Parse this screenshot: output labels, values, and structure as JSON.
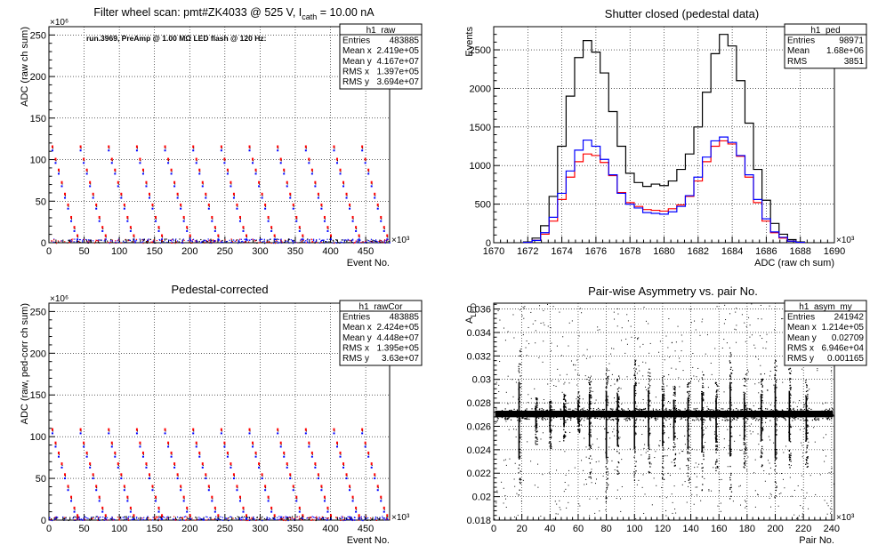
{
  "colors": {
    "black": "#000000",
    "red": "#ff0000",
    "blue": "#0000ff",
    "grid": "#000000"
  },
  "chart_data": [
    {
      "id": "raw",
      "type": "scatter",
      "title_main": "Filter wheel scan: pmt#ZK4033 @   525 V, I",
      "title_sub": "cath",
      "title_tail": " = 10.00 nA",
      "annotation": "run.3969, PreAmp @ 1.00 MΩ LED flash @  120 Hz:",
      "xlabel": "Event No.",
      "ylabel": "ADC (raw ch sum)",
      "x_exponent": "×10³",
      "y_exponent": "×10⁶",
      "xlim": [
        0,
        484
      ],
      "ylim": [
        0,
        260
      ],
      "xticks": [
        0,
        50,
        100,
        150,
        200,
        250,
        300,
        350,
        400,
        450
      ],
      "yticks": [
        0,
        50,
        100,
        150,
        200,
        250
      ],
      "grid": true,
      "stats": {
        "title": "h1_raw",
        "rows": [
          [
            "Entries",
            "483885"
          ],
          [
            "Mean x",
            "2.419e+05"
          ],
          [
            "Mean y",
            "4.167e+07"
          ],
          [
            "RMS x",
            "1.397e+05"
          ],
          [
            "RMS y",
            "3.694e+07"
          ]
        ]
      },
      "pattern": {
        "period": 40,
        "levels": [
          115,
          100,
          87,
          72,
          58,
          45,
          30,
          18,
          8
        ]
      }
    },
    {
      "id": "ped",
      "type": "line",
      "title": "Shutter closed (pedestal data)",
      "xlabel": "ADC (raw ch sum)",
      "ylabel": "Events",
      "x_exponent": "×10³",
      "xlim": [
        1670,
        1690
      ],
      "ylim": [
        0,
        2800
      ],
      "xticks": [
        1670,
        1672,
        1674,
        1676,
        1678,
        1680,
        1682,
        1684,
        1686,
        1688,
        1690
      ],
      "yticks": [
        0,
        500,
        1000,
        1500,
        2000,
        2500
      ],
      "grid": true,
      "stats": {
        "title": "h1_ped",
        "rows": [
          [
            "Entries",
            "98971"
          ],
          [
            "Mean",
            "1.68e+06"
          ],
          [
            "RMS",
            "3851"
          ]
        ]
      },
      "series": [
        {
          "color": "#000000",
          "x": [
            1672.0,
            1672.5,
            1673.0,
            1673.5,
            1674.0,
            1674.5,
            1675.0,
            1675.5,
            1676.0,
            1676.5,
            1677.0,
            1677.5,
            1678.0,
            1678.5,
            1679.0,
            1679.5,
            1680.0,
            1680.5,
            1681.0,
            1681.5,
            1682.0,
            1682.5,
            1683.0,
            1683.5,
            1684.0,
            1684.5,
            1685.0,
            1685.5,
            1686.0,
            1686.5,
            1687.0,
            1687.5,
            1688.0
          ],
          "y": [
            10,
            60,
            220,
            600,
            1250,
            1900,
            2400,
            2620,
            2470,
            2200,
            1700,
            1250,
            900,
            780,
            730,
            760,
            740,
            800,
            950,
            1150,
            1500,
            1950,
            2450,
            2700,
            2550,
            2100,
            1550,
            950,
            550,
            250,
            110,
            40,
            10
          ]
        },
        {
          "color": "#ff0000",
          "x": [
            1672.0,
            1672.5,
            1673.0,
            1673.5,
            1674.0,
            1674.5,
            1675.0,
            1675.5,
            1676.0,
            1676.5,
            1677.0,
            1677.5,
            1678.0,
            1678.5,
            1679.0,
            1679.5,
            1680.0,
            1680.5,
            1681.0,
            1681.5,
            1682.0,
            1682.5,
            1683.0,
            1683.5,
            1684.0,
            1684.5,
            1685.0,
            1685.5,
            1686.0,
            1686.5,
            1687.0,
            1687.5,
            1688.0
          ],
          "y": [
            5,
            30,
            110,
            280,
            560,
            850,
            1050,
            1150,
            1130,
            1040,
            870,
            650,
            520,
            470,
            430,
            420,
            410,
            440,
            490,
            600,
            800,
            1050,
            1250,
            1320,
            1280,
            1120,
            850,
            520,
            280,
            130,
            60,
            20,
            5
          ]
        },
        {
          "color": "#0000ff",
          "x": [
            1672.0,
            1672.5,
            1673.0,
            1673.5,
            1674.0,
            1674.5,
            1675.0,
            1675.5,
            1676.0,
            1676.5,
            1677.0,
            1677.5,
            1678.0,
            1678.5,
            1679.0,
            1679.5,
            1680.0,
            1680.5,
            1681.0,
            1681.5,
            1682.0,
            1682.5,
            1683.0,
            1683.5,
            1684.0,
            1684.5,
            1685.0,
            1685.5,
            1686.0,
            1686.5,
            1687.0,
            1687.5,
            1688.0
          ],
          "y": [
            5,
            30,
            130,
            330,
            640,
            930,
            1200,
            1330,
            1250,
            1080,
            880,
            640,
            500,
            450,
            390,
            380,
            370,
            400,
            470,
            610,
            850,
            1110,
            1320,
            1370,
            1300,
            1130,
            880,
            560,
            310,
            140,
            70,
            20,
            5
          ]
        }
      ]
    },
    {
      "id": "rawCor",
      "type": "scatter",
      "title": "Pedestal-corrected",
      "xlabel": "Event No.",
      "ylabel": "ADC (raw, ped-corr ch sum)",
      "x_exponent": "×10³",
      "y_exponent": "×10⁶",
      "xlim": [
        0,
        484
      ],
      "ylim": [
        0,
        260
      ],
      "xticks": [
        0,
        50,
        100,
        150,
        200,
        250,
        300,
        350,
        400,
        450
      ],
      "yticks": [
        0,
        50,
        100,
        150,
        200,
        250
      ],
      "grid": true,
      "stats": {
        "title": "h1_rawCor",
        "rows": [
          [
            "Entries",
            "483885"
          ],
          [
            "Mean x",
            "2.424e+05"
          ],
          [
            "Mean y",
            "4.448e+07"
          ],
          [
            "RMS x",
            "1.395e+05"
          ],
          [
            "RMS y",
            "3.63e+07"
          ]
        ]
      },
      "pattern": {
        "period": 40,
        "levels": [
          108,
          92,
          80,
          67,
          54,
          40,
          27,
          14,
          5
        ]
      }
    },
    {
      "id": "asym",
      "type": "scatter",
      "title": "Pair-wise Asymmetry vs. pair No.",
      "xlabel": "Pair No.",
      "ylabel": "A",
      "ylabel_sub": "LED",
      "x_exponent": "×10³",
      "xlim": [
        0,
        242
      ],
      "ylim": [
        0.018,
        0.0365
      ],
      "xticks": [
        0,
        20,
        40,
        60,
        80,
        100,
        120,
        140,
        160,
        180,
        200,
        220,
        240
      ],
      "yticks": [
        0.018,
        0.02,
        0.022,
        0.024,
        0.026,
        0.028,
        0.03,
        0.032,
        0.034,
        0.036
      ],
      "grid": true,
      "stats": {
        "title": "h1_asym_my",
        "rows": [
          [
            "Entries",
            "241942"
          ],
          [
            "Mean x",
            "1.214e+05"
          ],
          [
            "Mean y",
            "0.02709"
          ],
          [
            "RMS x",
            "6.946e+04"
          ],
          [
            "RMS y",
            "0.001165"
          ]
        ]
      },
      "band": {
        "center": 0.02705,
        "halfwidth": 0.0004
      },
      "spikes": [
        {
          "x": 18,
          "top": 0.0325,
          "bottom": 0.0195
        },
        {
          "x": 30,
          "top": 0.0285,
          "bottom": 0.0245
        },
        {
          "x": 40,
          "top": 0.0282,
          "bottom": 0.024
        },
        {
          "x": 50,
          "top": 0.0288,
          "bottom": 0.0248
        },
        {
          "x": 60,
          "top": 0.029,
          "bottom": 0.0255
        },
        {
          "x": 68,
          "top": 0.0305,
          "bottom": 0.0215
        },
        {
          "x": 80,
          "top": 0.031,
          "bottom": 0.0195
        },
        {
          "x": 88,
          "top": 0.0305,
          "bottom": 0.0215
        },
        {
          "x": 100,
          "top": 0.032,
          "bottom": 0.021
        },
        {
          "x": 110,
          "top": 0.031,
          "bottom": 0.0215
        },
        {
          "x": 120,
          "top": 0.0305,
          "bottom": 0.0215
        },
        {
          "x": 128,
          "top": 0.0295,
          "bottom": 0.0225
        },
        {
          "x": 138,
          "top": 0.0298,
          "bottom": 0.021
        },
        {
          "x": 148,
          "top": 0.0305,
          "bottom": 0.0205
        },
        {
          "x": 158,
          "top": 0.0298,
          "bottom": 0.0222
        },
        {
          "x": 168,
          "top": 0.0325,
          "bottom": 0.0198
        },
        {
          "x": 178,
          "top": 0.0305,
          "bottom": 0.0225
        },
        {
          "x": 190,
          "top": 0.0305,
          "bottom": 0.0225
        },
        {
          "x": 200,
          "top": 0.032,
          "bottom": 0.0195
        },
        {
          "x": 210,
          "top": 0.031,
          "bottom": 0.0225
        },
        {
          "x": 222,
          "top": 0.03,
          "bottom": 0.0225
        }
      ]
    }
  ]
}
